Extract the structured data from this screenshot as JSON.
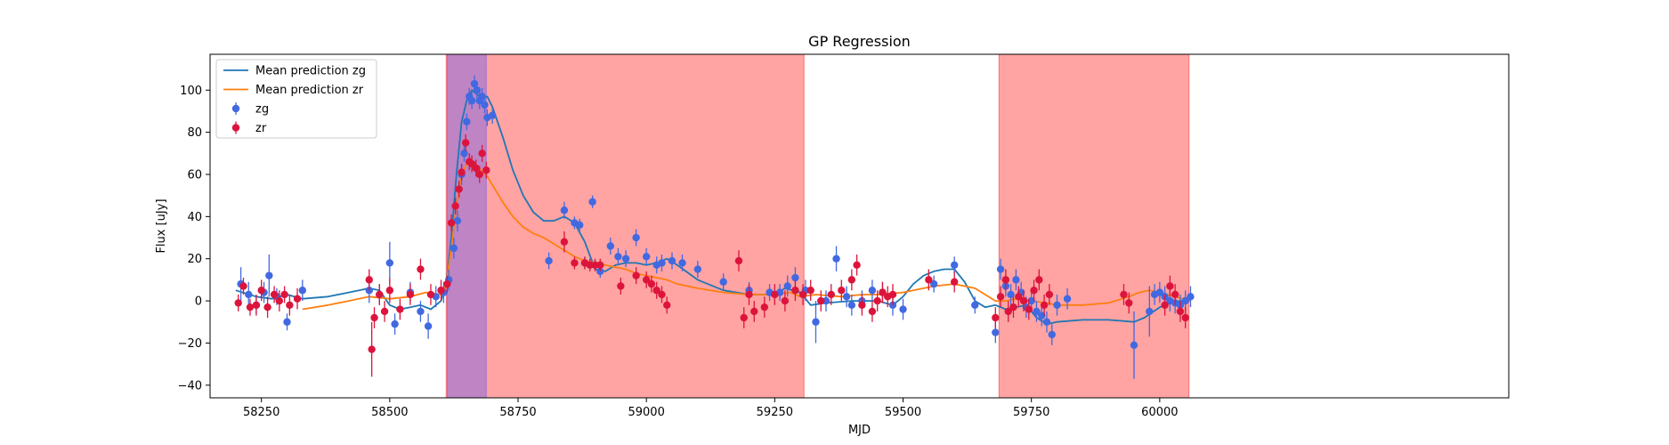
{
  "chart_data": {
    "type": "scatter",
    "title": "GP Regression",
    "xlabel": "MJD",
    "ylabel": "Flux [uJy]",
    "xlim": [
      58150,
      60680
    ],
    "ylim": [
      -46,
      117
    ],
    "xticks": [
      58250,
      58500,
      58750,
      59000,
      59250,
      59500,
      59750,
      60000
    ],
    "yticks": [
      -40,
      -20,
      0,
      20,
      40,
      60,
      80,
      100
    ],
    "grid": false,
    "legend_position": "top-left",
    "spans": [
      {
        "x0": 58610,
        "x1": 59307,
        "color": "#ff6666"
      },
      {
        "x0": 58612,
        "x1": 58688,
        "color": "#9370db"
      },
      {
        "x0": 59687,
        "x1": 60057,
        "color": "#ff6666"
      }
    ],
    "series": [
      {
        "name": "Mean prediction zg",
        "kind": "line",
        "color": "#1f77b4",
        "x": [
          58200,
          58240,
          58270,
          58300,
          58330,
          58380,
          58420,
          58460,
          58480,
          58500,
          58520,
          58540,
          58560,
          58580,
          58600,
          58610,
          58620,
          58630,
          58640,
          58650,
          58660,
          58670,
          58680,
          58690,
          58700,
          58720,
          58740,
          58760,
          58780,
          58800,
          58820,
          58840,
          58860,
          58880,
          58900,
          58920,
          58940,
          58960,
          58980,
          59000,
          59020,
          59040,
          59060,
          59100,
          59150,
          59200,
          59250,
          59270,
          59300,
          59320,
          59350,
          59400,
          59450,
          59480,
          59500,
          59520,
          59540,
          59560,
          59580,
          59600,
          59620,
          59640,
          59660,
          59680,
          59700,
          59720,
          59740,
          59760,
          59780,
          59800,
          59850,
          59900,
          59950,
          59970,
          60000,
          60020,
          60040,
          60060
        ],
        "y": [
          5,
          2,
          1,
          3,
          1,
          2,
          4,
          6,
          5,
          -2,
          -4,
          -3,
          -2,
          -4,
          0,
          8,
          30,
          60,
          85,
          95,
          100,
          98,
          96,
          97,
          92,
          78,
          62,
          50,
          42,
          38,
          38,
          40,
          37,
          28,
          15,
          14,
          17,
          18,
          18,
          17,
          18,
          20,
          17,
          10,
          5,
          3,
          3,
          6,
          4,
          -2,
          -1,
          0,
          0,
          -2,
          2,
          8,
          12,
          14,
          15,
          15,
          9,
          0,
          -3,
          -2,
          -4,
          -3,
          -2,
          -8,
          -11,
          -10,
          -9,
          -9,
          -10,
          -8,
          -3,
          -1,
          0,
          0
        ]
      },
      {
        "name": "Mean prediction zr",
        "kind": "line",
        "color": "#ff7f0e",
        "x": [
          58330,
          58380,
          58420,
          58460,
          58500,
          58540,
          58570,
          58600,
          58610,
          58620,
          58630,
          58640,
          58650,
          58660,
          58670,
          58680,
          58690,
          58700,
          58720,
          58740,
          58760,
          58780,
          58800,
          58820,
          58840,
          58860,
          58880,
          58900,
          58920,
          58940,
          58960,
          58980,
          59000,
          59020,
          59040,
          59060,
          59100,
          59150,
          59200,
          59250,
          59280,
          59300,
          59330,
          59380,
          59420,
          59450,
          59500,
          59540,
          59560,
          59600,
          59640,
          59660,
          59680,
          59700,
          59720,
          59750,
          59780,
          59800,
          59850,
          59900,
          59940,
          59960,
          59980,
          60000,
          60030,
          60060
        ],
        "y": [
          -4,
          -2,
          0,
          2,
          1,
          2,
          4,
          3,
          8,
          25,
          45,
          60,
          65,
          65,
          63,
          62,
          59,
          55,
          47,
          40,
          35,
          32,
          30,
          27,
          24,
          21,
          19,
          18,
          17,
          16,
          15,
          13,
          12,
          11,
          10,
          8,
          6,
          4,
          3,
          3,
          4,
          2,
          3,
          2,
          3,
          3,
          4,
          6,
          7,
          8,
          6,
          3,
          0,
          0,
          1,
          0,
          -1,
          -2,
          -2,
          -1,
          2,
          4,
          5,
          4,
          2,
          0
        ]
      },
      {
        "name": "zg",
        "kind": "errorbar",
        "color": "#4169e1",
        "x": [
          58210,
          58225,
          58240,
          58255,
          58265,
          58280,
          58300,
          58330,
          58460,
          58480,
          58500,
          58510,
          58540,
          58560,
          58575,
          58590,
          58605,
          58615,
          58625,
          58632,
          58640,
          58645,
          58650,
          58655,
          58660,
          58665,
          58670,
          58675,
          58680,
          58685,
          58690,
          58700,
          58810,
          58840,
          58860,
          58870,
          58880,
          58895,
          58910,
          58930,
          58945,
          58960,
          58980,
          59000,
          59020,
          59030,
          59050,
          59070,
          59100,
          59150,
          59200,
          59240,
          59260,
          59275,
          59290,
          59310,
          59330,
          59350,
          59370,
          59390,
          59400,
          59420,
          59440,
          59460,
          59480,
          59500,
          59560,
          59600,
          59640,
          59680,
          59690,
          59700,
          59710,
          59720,
          59730,
          59740,
          59750,
          59760,
          59770,
          59780,
          59790,
          59800,
          59820,
          59950,
          59980,
          59990,
          60000,
          60010,
          60020,
          60030,
          60040,
          60050,
          60060
        ],
        "y": [
          8,
          3,
          -2,
          4,
          12,
          2,
          -10,
          5,
          5,
          3,
          18,
          -11,
          4,
          -5,
          -12,
          2,
          4,
          10,
          25,
          38,
          60,
          70,
          85,
          97,
          95,
          103,
          100,
          95,
          97,
          93,
          87,
          88,
          19,
          43,
          37,
          36,
          18,
          47,
          14,
          26,
          21,
          20,
          30,
          21,
          17,
          18,
          19,
          18,
          15,
          9,
          5,
          4,
          4,
          7,
          11,
          5,
          -10,
          0,
          20,
          2,
          -2,
          0,
          5,
          4,
          -2,
          -4,
          8,
          17,
          -2,
          -15,
          15,
          7,
          3,
          10,
          4,
          -3,
          0,
          -5,
          -7,
          -10,
          -16,
          -2,
          1,
          -21,
          -5,
          3,
          4,
          2,
          0,
          -1,
          -2,
          0,
          2
        ],
        "err": [
          8,
          6,
          4,
          5,
          10,
          4,
          4,
          5,
          6,
          5,
          10,
          5,
          5,
          5,
          6,
          5,
          5,
          5,
          5,
          5,
          5,
          4,
          4,
          4,
          4,
          4,
          4,
          4,
          4,
          4,
          4,
          4,
          4,
          4,
          3,
          3,
          3,
          3,
          3,
          4,
          4,
          4,
          4,
          4,
          4,
          4,
          4,
          4,
          4,
          4,
          4,
          4,
          4,
          5,
          5,
          5,
          10,
          5,
          6,
          5,
          5,
          5,
          5,
          5,
          5,
          5,
          4,
          4,
          4,
          5,
          5,
          5,
          5,
          5,
          5,
          5,
          5,
          5,
          5,
          5,
          5,
          5,
          5,
          16,
          12,
          5,
          5,
          5,
          5,
          5,
          5,
          5,
          5
        ]
      },
      {
        "name": "zr",
        "kind": "errorbar",
        "color": "#dc143c",
        "x": [
          58205,
          58215,
          58228,
          58240,
          58250,
          58262,
          58275,
          58285,
          58295,
          58305,
          58320,
          58460,
          58465,
          58470,
          58480,
          58490,
          58500,
          58520,
          58540,
          58560,
          58580,
          58600,
          58612,
          58620,
          58628,
          58635,
          58640,
          58648,
          58655,
          58660,
          58668,
          58675,
          58680,
          58688,
          58840,
          58860,
          58880,
          58890,
          58900,
          58910,
          58950,
          58980,
          59000,
          59010,
          59020,
          59030,
          59040,
          59180,
          59190,
          59200,
          59210,
          59230,
          59250,
          59270,
          59290,
          59305,
          59320,
          59340,
          59360,
          59380,
          59400,
          59410,
          59420,
          59440,
          59450,
          59460,
          59470,
          59480,
          59550,
          59600,
          59680,
          59690,
          59700,
          59705,
          59715,
          59725,
          59735,
          59745,
          59755,
          59765,
          59775,
          59785,
          59930,
          59940,
          60010,
          60020,
          60030,
          60040,
          60050
        ],
        "y": [
          -1,
          7,
          -3,
          -2,
          5,
          -3,
          3,
          0,
          3,
          -2,
          1,
          10,
          -23,
          -8,
          3,
          -5,
          5,
          -4,
          3,
          15,
          3,
          5,
          8,
          37,
          45,
          53,
          61,
          75,
          66,
          65,
          63,
          60,
          70,
          62,
          28,
          18,
          18,
          17,
          17,
          17,
          7,
          12,
          10,
          8,
          5,
          3,
          -2,
          19,
          -8,
          3,
          -5,
          -3,
          3,
          0,
          5,
          3,
          5,
          0,
          3,
          5,
          10,
          17,
          -2,
          -5,
          0,
          4,
          2,
          3,
          10,
          9,
          -8,
          2,
          10,
          -5,
          -3,
          2,
          0,
          -4,
          5,
          10,
          -2,
          3,
          3,
          -1,
          -2,
          7,
          3,
          -5,
          -8
        ],
        "err": [
          4,
          4,
          4,
          5,
          5,
          5,
          4,
          5,
          4,
          5,
          5,
          5,
          13,
          5,
          5,
          5,
          6,
          5,
          5,
          5,
          5,
          5,
          4,
          4,
          4,
          4,
          4,
          4,
          4,
          4,
          4,
          4,
          4,
          4,
          5,
          3,
          3,
          3,
          3,
          3,
          4,
          4,
          4,
          4,
          4,
          4,
          4,
          5,
          5,
          5,
          5,
          5,
          5,
          5,
          5,
          5,
          5,
          5,
          5,
          5,
          5,
          5,
          5,
          5,
          5,
          5,
          5,
          5,
          5,
          5,
          5,
          5,
          5,
          5,
          5,
          5,
          5,
          5,
          5,
          5,
          5,
          5,
          5,
          5,
          5,
          5,
          5,
          5,
          5
        ]
      }
    ]
  }
}
